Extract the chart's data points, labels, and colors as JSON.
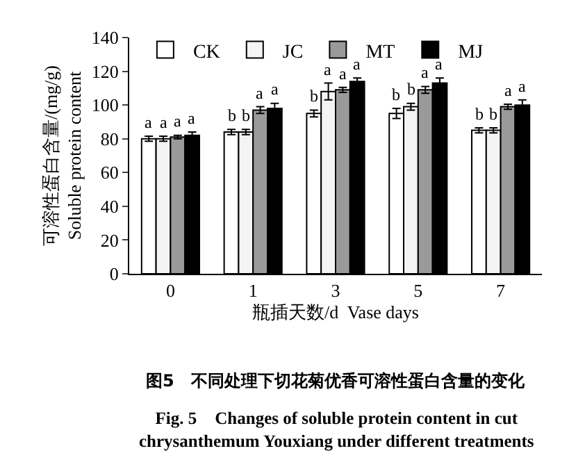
{
  "chart_data": {
    "type": "bar",
    "title": "图5　不同处理下切花菊优香可溶性蛋白含量的变化",
    "subtitle": "Fig. 5　Changes of soluble protein content in cut\nchrysanthemum Youxiang under different treatments",
    "xlabel": "瓶插天数/d  Vase days",
    "ylabel": "可溶性蛋白含量/(mg/g)\nSoluble protein content",
    "categories": [
      "0",
      "1",
      "3",
      "5",
      "7"
    ],
    "series": [
      {
        "name": "CK",
        "color": "#ffffff",
        "values": [
          80,
          84,
          95,
          95,
          85
        ],
        "errors": [
          1.5,
          1.5,
          2,
          3,
          1.5
        ],
        "value_labels": [
          "a",
          "b",
          "b",
          "b",
          "b"
        ]
      },
      {
        "name": "JC",
        "color": "#f4f4f4",
        "values": [
          80,
          84,
          108,
          99,
          85
        ],
        "errors": [
          1.5,
          1.5,
          5,
          2,
          1.5
        ],
        "value_labels": [
          "a",
          "b",
          "a",
          "b",
          "b"
        ]
      },
      {
        "name": "MT",
        "color": "#9a9a9a",
        "values": [
          81,
          97,
          109,
          109,
          99
        ],
        "errors": [
          1,
          2,
          1.5,
          2,
          1.5
        ],
        "value_labels": [
          "a",
          "a",
          "a",
          "a",
          "a"
        ]
      },
      {
        "name": "MJ",
        "color": "#000000",
        "values": [
          82,
          98,
          114,
          113,
          100
        ],
        "errors": [
          2,
          3,
          2,
          3,
          3
        ],
        "value_labels": [
          "a",
          "a",
          "a",
          "a",
          "a"
        ]
      }
    ],
    "ylim": [
      0,
      140
    ],
    "yticks": [
      0,
      20,
      40,
      60,
      80,
      100,
      120,
      140
    ],
    "grid": false,
    "legend": "top left"
  }
}
